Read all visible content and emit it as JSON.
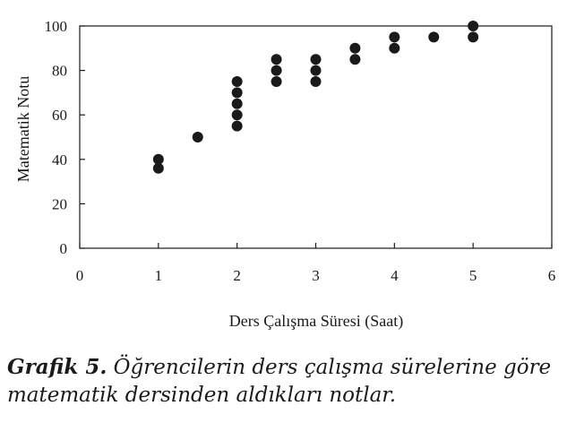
{
  "chart_data": {
    "type": "scatter",
    "title": "",
    "xlabel": "Ders Çalışma Süresi (Saat)",
    "ylabel": "Matematik Notu",
    "xlim": [
      0,
      6
    ],
    "ylim": [
      0,
      100
    ],
    "xticks": [
      0,
      1,
      2,
      3,
      4,
      5,
      6
    ],
    "yticks": [
      0,
      20,
      40,
      60,
      80,
      100
    ],
    "grid": false,
    "marker_color": "#1a1a1a",
    "points": [
      {
        "x": 1,
        "y": 40
      },
      {
        "x": 1,
        "y": 36
      },
      {
        "x": 1.5,
        "y": 50
      },
      {
        "x": 2,
        "y": 75
      },
      {
        "x": 2,
        "y": 70
      },
      {
        "x": 2,
        "y": 65
      },
      {
        "x": 2,
        "y": 60
      },
      {
        "x": 2,
        "y": 55
      },
      {
        "x": 2.5,
        "y": 85
      },
      {
        "x": 2.5,
        "y": 80
      },
      {
        "x": 2.5,
        "y": 75
      },
      {
        "x": 3,
        "y": 85
      },
      {
        "x": 3,
        "y": 80
      },
      {
        "x": 3,
        "y": 75
      },
      {
        "x": 3.5,
        "y": 90
      },
      {
        "x": 3.5,
        "y": 85
      },
      {
        "x": 4,
        "y": 95
      },
      {
        "x": 4,
        "y": 90
      },
      {
        "x": 4.5,
        "y": 95
      },
      {
        "x": 5,
        "y": 100
      },
      {
        "x": 5,
        "y": 95
      }
    ]
  },
  "caption": {
    "label": "Grafik 5.",
    "text": " Öğrencilerin ders çalışma sürelerine göre matematik dersinden aldıkları notlar."
  }
}
